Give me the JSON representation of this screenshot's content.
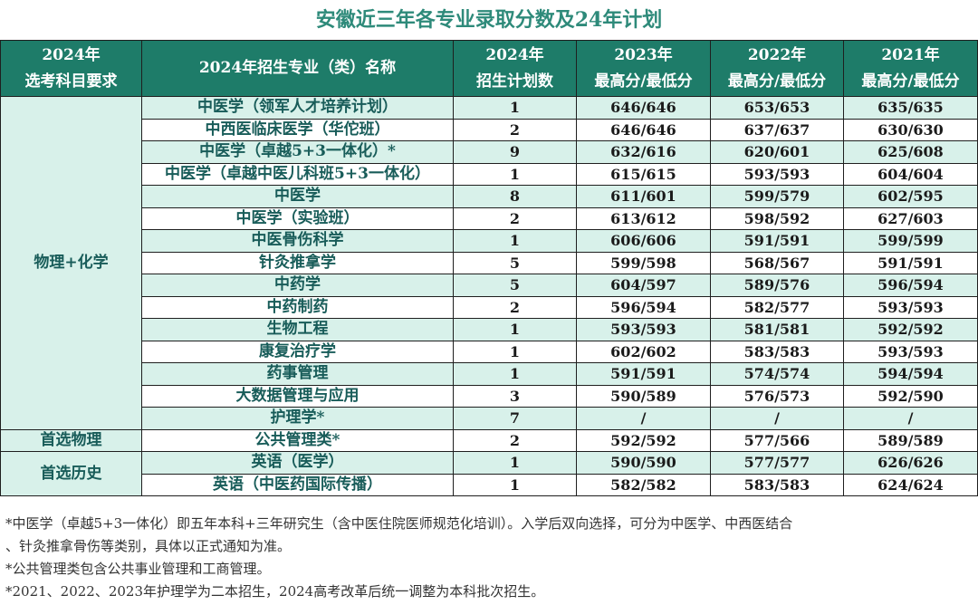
{
  "title": "安徽近三年各专业录取分数及24年计划",
  "header": {
    "subject_line1": "2024年",
    "subject_line2": "选考科目要求",
    "major": "2024年招生专业（类）名称",
    "plan_line1": "2024年",
    "plan_line2": "招生计划数",
    "y2023_line1": "2023年",
    "y2023_line2": "最高分/最低分",
    "y2022_line1": "2022年",
    "y2022_line2": "最高分/最低分",
    "y2021_line1": "2021年",
    "y2021_line2": "最高分/最低分"
  },
  "groups": [
    {
      "subject": "物理+化学"
    },
    {
      "subject": "首选物理"
    },
    {
      "subject": "首选历史"
    }
  ],
  "rows": [
    {
      "major": "中医学（领军人才培养计划）",
      "plan": "1",
      "s2023": "646/646",
      "s2022": "653/653",
      "s2021": "635/635"
    },
    {
      "major": "中西医临床医学（华佗班）",
      "plan": "2",
      "s2023": "646/646",
      "s2022": "637/637",
      "s2021": "630/630"
    },
    {
      "major": "中医学（卓越5+3一体化）*",
      "plan": "9",
      "s2023": "632/616",
      "s2022": "620/601",
      "s2021": "625/608"
    },
    {
      "major": "中医学（卓越中医儿科班5+3一体化）",
      "plan": "1",
      "s2023": "615/615",
      "s2022": "593/593",
      "s2021": "604/604"
    },
    {
      "major": "中医学",
      "plan": "8",
      "s2023": "611/601",
      "s2022": "599/579",
      "s2021": "602/595"
    },
    {
      "major": "中医学（实验班）",
      "plan": "2",
      "s2023": "613/612",
      "s2022": "598/592",
      "s2021": "627/603"
    },
    {
      "major": "中医骨伤科学",
      "plan": "1",
      "s2023": "606/606",
      "s2022": "591/591",
      "s2021": "599/599"
    },
    {
      "major": "针灸推拿学",
      "plan": "5",
      "s2023": "599/598",
      "s2022": "568/567",
      "s2021": "591/591"
    },
    {
      "major": "中药学",
      "plan": "5",
      "s2023": "604/597",
      "s2022": "589/576",
      "s2021": "596/594"
    },
    {
      "major": "中药制药",
      "plan": "2",
      "s2023": "596/594",
      "s2022": "582/577",
      "s2021": "593/593"
    },
    {
      "major": "生物工程",
      "plan": "1",
      "s2023": "593/593",
      "s2022": "581/581",
      "s2021": "592/592"
    },
    {
      "major": "康复治疗学",
      "plan": "1",
      "s2023": "602/602",
      "s2022": "583/583",
      "s2021": "593/593"
    },
    {
      "major": "药事管理",
      "plan": "1",
      "s2023": "591/591",
      "s2022": "574/574",
      "s2021": "594/594"
    },
    {
      "major": "大数据管理与应用",
      "plan": "3",
      "s2023": "590/589",
      "s2022": "576/573",
      "s2021": "592/590"
    },
    {
      "major": "护理学*",
      "plan": "7",
      "s2023": "/",
      "s2022": "/",
      "s2021": "/"
    },
    {
      "major": "公共管理类*",
      "plan": "2",
      "s2023": "592/592",
      "s2022": "577/566",
      "s2021": "589/589"
    },
    {
      "major": "英语（医学）",
      "plan": "1",
      "s2023": "590/590",
      "s2022": "577/577",
      "s2021": "626/626"
    },
    {
      "major": "英语（中医药国际传播）",
      "plan": "1",
      "s2023": "582/582",
      "s2022": "583/583",
      "s2021": "624/624"
    }
  ],
  "notes": [
    "*中医学（卓越5+3一体化）即五年本科+三年研究生（含中医住院医师规范化培训）。入学后双向选择，可分为中医学、中西医结合",
    "、针灸推拿骨伤等类别，具体以正式通知为准。",
    "*公共管理类包含公共事业管理和工商管理。",
    "*2021、2022、2023年护理学为二本招生，2024高考改革后统一调整为本科批次招生。"
  ]
}
